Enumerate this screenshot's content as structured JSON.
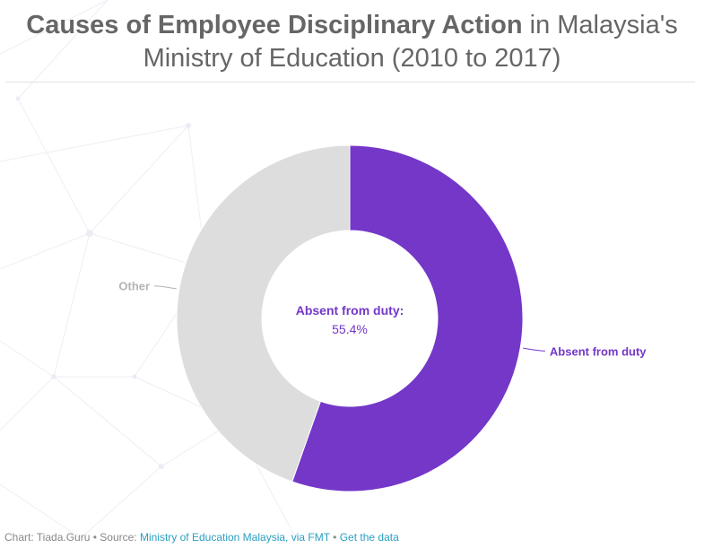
{
  "title": {
    "bold": "Causes of Employee Disciplinary Action",
    "rest": " in Malaysia's",
    "line2": "Ministry of Education (2010 to 2017)"
  },
  "chart_data": {
    "type": "pie",
    "donut": true,
    "slices": [
      {
        "label": "Absent from duty",
        "value": 55.4,
        "color": "#7437c8"
      },
      {
        "label": "Other",
        "value": 44.6,
        "color": "#dddddd"
      }
    ],
    "center_label": "Absent from duty:",
    "center_value": "55.4%",
    "label_colors": {
      "Absent from duty": "#7437c8",
      "Other": "#b3b3b3"
    }
  },
  "footer": {
    "chart_credit": "Chart: Tiada.Guru",
    "separator": " • ",
    "source_prefix": "Source: ",
    "source_link": "Ministry of Education Malaysia, via FMT",
    "data_link": "Get the data"
  }
}
